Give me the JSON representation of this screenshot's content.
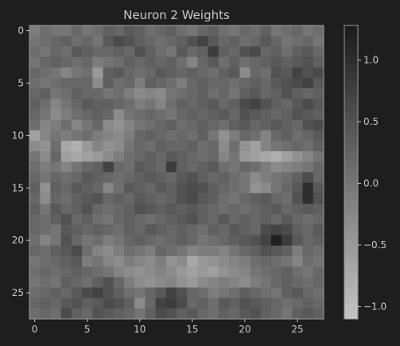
{
  "chart_data": {
    "type": "heatmap",
    "title": "Neuron 2 Weights",
    "xlabel": "",
    "ylabel": "",
    "rows": 28,
    "cols": 28,
    "x_ticks": [
      "0",
      "5",
      "10",
      "15",
      "20",
      "25"
    ],
    "y_ticks": [
      "0",
      "5",
      "10",
      "15",
      "20",
      "25"
    ],
    "colorbar": {
      "ticks": [
        "1.0",
        "0.5",
        "0.0",
        "−0.5",
        "−1.0"
      ],
      "tick_values": [
        1.0,
        0.5,
        0.0,
        -0.5,
        -1.0
      ],
      "range": [
        -1.1,
        1.28
      ],
      "high_color": "#1a1a1a",
      "low_color": "#c4c4c4"
    },
    "grid": false,
    "values": [
      [
        -0.1,
        0.1,
        0.0,
        0.0,
        0.2,
        0.0,
        0.1,
        0.3,
        0.2,
        0.4,
        0.3,
        0.1,
        0.2,
        0.3,
        0.1,
        0.0,
        0.2,
        0.3,
        0.1,
        0.0,
        0.2,
        0.1,
        0.3,
        0.0,
        0.1,
        0.2,
        0.0,
        0.1
      ],
      [
        0.0,
        0.1,
        0.2,
        0.3,
        0.1,
        0.2,
        0.0,
        0.4,
        0.6,
        0.5,
        0.3,
        0.2,
        0.1,
        0.2,
        0.3,
        0.5,
        0.7,
        0.4,
        0.2,
        0.3,
        0.1,
        0.2,
        0.4,
        0.2,
        0.0,
        0.1,
        0.2,
        0.0
      ],
      [
        0.1,
        0.0,
        0.2,
        0.1,
        0.4,
        0.3,
        0.2,
        0.2,
        0.3,
        0.2,
        0.5,
        0.3,
        0.1,
        0.0,
        0.4,
        0.2,
        0.3,
        0.8,
        0.3,
        0.2,
        0.5,
        0.6,
        0.2,
        0.3,
        0.1,
        0.3,
        0.4,
        0.2
      ],
      [
        0.0,
        0.2,
        0.3,
        0.2,
        0.1,
        0.2,
        -0.1,
        0.0,
        0.1,
        0.3,
        0.2,
        0.3,
        0.2,
        0.3,
        0.1,
        -0.2,
        0.2,
        0.4,
        0.1,
        0.3,
        0.1,
        0.2,
        0.3,
        0.4,
        0.3,
        0.4,
        0.5,
        0.3
      ],
      [
        0.2,
        0.1,
        0.0,
        -0.2,
        0.0,
        0.1,
        -0.5,
        0.3,
        0.4,
        0.2,
        0.1,
        0.2,
        0.4,
        0.3,
        0.2,
        0.3,
        0.2,
        0.1,
        0.3,
        0.4,
        -0.3,
        0.2,
        0.1,
        0.5,
        0.4,
        0.7,
        0.5,
        0.6
      ],
      [
        0.1,
        0.0,
        0.1,
        0.2,
        0.2,
        0.2,
        -0.3,
        0.3,
        0.1,
        0.2,
        -0.1,
        0.3,
        0.2,
        0.1,
        -0.1,
        0.2,
        0.3,
        0.2,
        0.2,
        0.1,
        0.2,
        0.3,
        0.2,
        0.4,
        0.5,
        0.6,
        0.7,
        0.4
      ],
      [
        0.2,
        0.3,
        0.0,
        0.1,
        0.3,
        0.2,
        0.2,
        0.0,
        0.1,
        -0.1,
        -0.3,
        -0.2,
        -0.3,
        0.0,
        0.1,
        0.2,
        0.3,
        0.1,
        0.2,
        0.0,
        0.3,
        0.4,
        0.2,
        0.3,
        0.5,
        0.3,
        0.2,
        0.3
      ],
      [
        0.3,
        0.1,
        -0.2,
        0.0,
        0.2,
        0.4,
        0.3,
        0.3,
        0.2,
        0.1,
        -0.1,
        0.0,
        -0.2,
        0.1,
        0.3,
        0.2,
        0.3,
        0.4,
        0.2,
        0.3,
        0.6,
        0.7,
        0.5,
        0.3,
        0.2,
        0.4,
        0.6,
        0.4
      ],
      [
        0.2,
        0.0,
        -0.3,
        -0.1,
        0.1,
        0.2,
        0.3,
        0.2,
        -0.3,
        0.0,
        0.1,
        0.2,
        0.1,
        0.0,
        0.2,
        0.3,
        0.2,
        0.3,
        0.4,
        0.2,
        0.5,
        0.4,
        0.3,
        0.2,
        0.3,
        0.5,
        0.4,
        0.3
      ],
      [
        0.1,
        -0.2,
        -0.1,
        0.1,
        -0.2,
        0.0,
        0.2,
        -0.3,
        -0.4,
        -0.2,
        0.0,
        0.1,
        0.2,
        0.3,
        0.1,
        0.2,
        0.3,
        0.2,
        0.1,
        0.3,
        0.4,
        0.2,
        0.3,
        0.4,
        0.3,
        0.2,
        0.5,
        0.6
      ],
      [
        -0.6,
        -0.2,
        0.0,
        -0.1,
        0.0,
        0.1,
        -0.1,
        -0.2,
        -0.3,
        -0.1,
        0.2,
        0.3,
        0.2,
        0.1,
        0.2,
        0.1,
        0.3,
        0.0,
        -0.4,
        -0.1,
        0.2,
        0.1,
        -0.2,
        0.2,
        0.3,
        0.1,
        0.2,
        0.4
      ],
      [
        -0.3,
        -0.4,
        0.1,
        -0.7,
        -0.8,
        -0.5,
        -0.2,
        -0.4,
        -0.3,
        0.0,
        0.2,
        0.1,
        0.3,
        0.2,
        0.2,
        0.3,
        0.1,
        0.2,
        -0.3,
        0.1,
        -0.4,
        -0.6,
        -0.2,
        0.0,
        0.1,
        0.2,
        0.1,
        0.3
      ],
      [
        0.0,
        -0.3,
        0.2,
        -0.6,
        -0.7,
        -0.6,
        -0.5,
        -0.3,
        -0.1,
        0.1,
        0.2,
        0.3,
        0.2,
        0.4,
        0.3,
        0.2,
        0.1,
        0.2,
        -0.2,
        0.0,
        -0.5,
        -0.6,
        -0.7,
        -0.8,
        -0.6,
        -0.4,
        -0.2,
        0.0
      ],
      [
        0.1,
        -0.1,
        0.0,
        -0.2,
        0.0,
        0.2,
        0.3,
        0.7,
        0.2,
        0.1,
        0.4,
        0.3,
        0.2,
        0.8,
        0.3,
        0.2,
        0.3,
        0.4,
        0.1,
        0.0,
        0.2,
        0.1,
        -0.1,
        -0.3,
        -0.2,
        -0.1,
        0.0,
        0.2
      ],
      [
        0.2,
        0.0,
        0.2,
        0.1,
        0.2,
        0.4,
        0.3,
        0.2,
        0.1,
        0.2,
        0.3,
        0.4,
        0.3,
        0.2,
        0.4,
        0.5,
        0.3,
        0.2,
        0.3,
        0.1,
        0.0,
        -0.3,
        -0.1,
        0.0,
        0.1,
        0.3,
        0.6,
        0.2
      ],
      [
        0.3,
        -0.4,
        0.3,
        0.2,
        0.4,
        0.3,
        0.2,
        -0.2,
        0.1,
        0.4,
        0.3,
        0.2,
        0.4,
        0.3,
        0.5,
        0.6,
        0.5,
        0.3,
        0.2,
        0.1,
        0.0,
        -0.4,
        -0.3,
        0.0,
        0.2,
        0.4,
        1.0,
        0.4
      ],
      [
        0.2,
        -0.3,
        0.2,
        0.1,
        0.3,
        0.4,
        0.5,
        0.2,
        0.3,
        0.2,
        0.4,
        0.3,
        0.2,
        0.3,
        0.5,
        0.6,
        0.4,
        0.3,
        0.1,
        0.0,
        0.2,
        0.3,
        0.4,
        0.2,
        0.1,
        0.5,
        1.0,
        0.5
      ],
      [
        0.3,
        0.0,
        0.4,
        0.2,
        0.3,
        0.5,
        0.2,
        0.1,
        0.2,
        0.3,
        0.5,
        0.4,
        0.3,
        0.4,
        0.3,
        0.4,
        0.3,
        0.2,
        0.1,
        0.2,
        0.1,
        0.2,
        0.3,
        0.4,
        0.2,
        0.3,
        0.4,
        0.3
      ],
      [
        0.2,
        0.1,
        0.3,
        0.5,
        0.2,
        0.3,
        0.1,
        0.0,
        0.2,
        0.3,
        0.2,
        0.1,
        0.2,
        0.3,
        0.4,
        0.5,
        0.3,
        0.2,
        0.4,
        0.2,
        0.3,
        0.2,
        0.3,
        0.2,
        0.4,
        0.2,
        0.1,
        0.2
      ],
      [
        0.2,
        0.1,
        0.0,
        0.4,
        0.3,
        0.2,
        0.3,
        0.2,
        0.1,
        0.3,
        0.2,
        0.4,
        0.3,
        0.2,
        0.3,
        0.2,
        0.1,
        0.3,
        0.2,
        0.4,
        0.3,
        0.2,
        0.6,
        0.7,
        0.6,
        0.3,
        0.2,
        0.4
      ],
      [
        0.1,
        -0.2,
        0.0,
        0.5,
        0.2,
        0.0,
        0.1,
        -0.1,
        0.0,
        0.2,
        0.3,
        0.2,
        0.1,
        0.2,
        0.3,
        0.2,
        0.0,
        0.1,
        0.2,
        0.3,
        0.4,
        0.5,
        0.7,
        1.2,
        0.8,
        0.4,
        0.2,
        0.3
      ],
      [
        0.2,
        0.1,
        0.3,
        0.4,
        0.6,
        0.1,
        -0.2,
        -0.3,
        -0.1,
        0.1,
        0.0,
        -0.1,
        0.2,
        0.1,
        0.0,
        -0.2,
        -0.1,
        -0.1,
        -0.2,
        0.0,
        0.2,
        0.3,
        0.5,
        0.4,
        0.3,
        -0.1,
        0.2,
        0.1
      ],
      [
        0.0,
        0.1,
        0.2,
        0.3,
        0.4,
        -0.1,
        0.0,
        -0.2,
        -0.3,
        -0.1,
        -0.2,
        -0.3,
        -0.1,
        -0.4,
        -0.3,
        -0.7,
        -0.5,
        -0.4,
        -0.3,
        -0.2,
        -0.1,
        0.1,
        0.2,
        0.1,
        0.0,
        -0.2,
        0.1,
        0.0
      ],
      [
        0.1,
        0.2,
        0.1,
        0.2,
        0.3,
        0.2,
        0.1,
        0.0,
        -0.2,
        -0.3,
        -0.4,
        -0.3,
        -0.2,
        -0.3,
        -0.5,
        -0.6,
        -0.5,
        -0.6,
        -0.4,
        -0.3,
        -0.2,
        0.0,
        0.1,
        0.2,
        0.3,
        0.1,
        0.0,
        0.2
      ],
      [
        0.0,
        0.1,
        0.0,
        0.3,
        0.2,
        0.1,
        0.3,
        0.5,
        0.2,
        -0.1,
        -0.3,
        -0.4,
        -0.3,
        -0.2,
        -0.4,
        -0.5,
        -0.3,
        -0.2,
        -0.1,
        -0.2,
        -0.3,
        -0.1,
        0.0,
        0.2,
        0.3,
        0.2,
        0.1,
        0.2
      ],
      [
        0.1,
        0.2,
        0.3,
        0.2,
        0.4,
        0.6,
        0.7,
        0.5,
        0.3,
        0.1,
        0.0,
        0.2,
        0.4,
        0.7,
        0.5,
        0.2,
        0.1,
        -0.1,
        0.0,
        0.1,
        0.3,
        0.2,
        0.1,
        0.0,
        0.3,
        0.4,
        0.2,
        0.1
      ],
      [
        0.2,
        0.3,
        0.2,
        0.4,
        0.5,
        0.3,
        0.4,
        0.6,
        0.5,
        0.3,
        -0.3,
        0.2,
        0.7,
        0.8,
        0.6,
        0.2,
        0.3,
        0.1,
        0.4,
        0.3,
        0.5,
        0.4,
        0.3,
        0.2,
        0.1,
        0.2,
        0.3,
        0.2
      ],
      [
        0.1,
        0.2,
        0.1,
        0.6,
        0.3,
        0.2,
        0.5,
        0.4,
        0.3,
        0.2,
        0.0,
        0.3,
        0.6,
        0.5,
        0.3,
        0.4,
        0.2,
        0.1,
        0.3,
        0.2,
        0.4,
        0.5,
        0.3,
        0.2,
        0.0,
        0.3,
        0.4,
        0.3
      ]
    ]
  }
}
